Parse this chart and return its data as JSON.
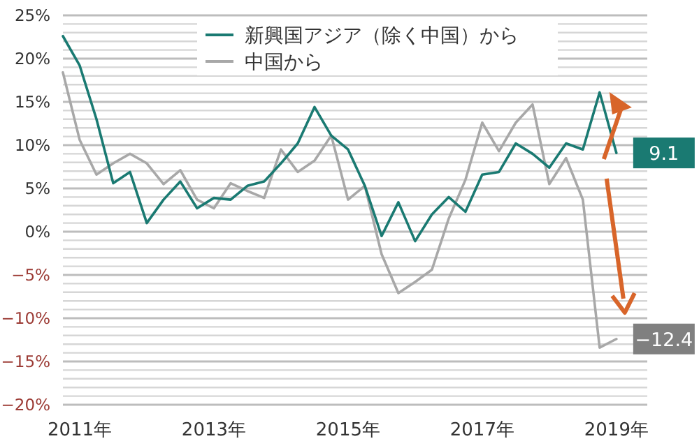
{
  "chart_data": {
    "type": "line",
    "x": [
      2010.75,
      2011,
      2011.25,
      2011.5,
      2011.75,
      2012,
      2012.25,
      2012.5,
      2012.75,
      2013,
      2013.25,
      2013.5,
      2013.75,
      2014,
      2014.25,
      2014.5,
      2014.75,
      2015,
      2015.25,
      2015.5,
      2015.75,
      2016,
      2016.25,
      2016.5,
      2016.75,
      2017,
      2017.25,
      2017.5,
      2017.75,
      2018,
      2018.25,
      2018.5,
      2018.75,
      2019
    ],
    "series": [
      {
        "name": "新興国アジア（除く中国）から",
        "color": "#1a7a72",
        "values": [
          22.6,
          19.2,
          13,
          5.6,
          6.9,
          1.0,
          3.7,
          5.8,
          2.7,
          3.9,
          3.7,
          5.3,
          5.8,
          7.9,
          10.2,
          14.4,
          11.1,
          9.5,
          5.3,
          -0.5,
          3.4,
          -1.1,
          2.0,
          4.0,
          2.3,
          6.6,
          6.9,
          10.2,
          9.0,
          7.4,
          10.2,
          9.5,
          16.1,
          9.1
        ],
        "value_labels": [
          null,
          null,
          null,
          null,
          null,
          null,
          null,
          null,
          null,
          null,
          null,
          null,
          null,
          null,
          null,
          null,
          null,
          null,
          null,
          null,
          null,
          null,
          null,
          null,
          null,
          null,
          null,
          null,
          null,
          null,
          null,
          null,
          null,
          "9.1"
        ]
      },
      {
        "name": "中国から",
        "color": "#a8a8a8",
        "values": [
          18.4,
          10.6,
          6.6,
          7.9,
          9.0,
          7.9,
          5.5,
          7.1,
          3.7,
          2.7,
          5.6,
          4.7,
          3.9,
          9.5,
          6.9,
          8.2,
          11.1,
          3.7,
          5.3,
          -2.6,
          -7.1,
          -5.8,
          -4.4,
          1.5,
          6.0,
          12.6,
          9.3,
          12.6,
          14.7,
          5.5,
          8.5,
          3.7,
          -13.4,
          -12.4
        ],
        "value_labels": [
          null,
          null,
          null,
          null,
          null,
          null,
          null,
          null,
          null,
          null,
          null,
          null,
          null,
          null,
          null,
          null,
          null,
          null,
          null,
          null,
          null,
          null,
          null,
          null,
          null,
          null,
          null,
          null,
          null,
          null,
          null,
          null,
          null,
          "−12.4"
        ]
      }
    ],
    "xlim": [
      2010.75,
      2019.46
    ],
    "xticks": [
      {
        "value": 2011,
        "label": "2011年"
      },
      {
        "value": 2013,
        "label": "2013年"
      },
      {
        "value": 2015,
        "label": "2015年"
      },
      {
        "value": 2017,
        "label": "2017年"
      },
      {
        "value": 2019,
        "label": "2019年"
      }
    ],
    "ylim": [
      -20,
      25
    ],
    "yticks": [
      {
        "value": -20,
        "label": "−20%"
      },
      {
        "value": -19,
        "label": null
      },
      {
        "value": -18,
        "label": null
      },
      {
        "value": -17,
        "label": null
      },
      {
        "value": -16,
        "label": null
      },
      {
        "value": -15,
        "label": "−15%"
      },
      {
        "value": -14,
        "label": null
      },
      {
        "value": -13,
        "label": null
      },
      {
        "value": -12,
        "label": null
      },
      {
        "value": -11,
        "label": null
      },
      {
        "value": -10,
        "label": "−10%"
      },
      {
        "value": -9,
        "label": null
      },
      {
        "value": -8,
        "label": null
      },
      {
        "value": -7,
        "label": null
      },
      {
        "value": -6,
        "label": null
      },
      {
        "value": -5,
        "label": "−5%"
      },
      {
        "value": -4,
        "label": null
      },
      {
        "value": -3,
        "label": null
      },
      {
        "value": -2,
        "label": null
      },
      {
        "value": -1,
        "label": null
      },
      {
        "value": 0,
        "label": "0%"
      },
      {
        "value": 1,
        "label": null
      },
      {
        "value": 2,
        "label": null
      },
      {
        "value": 3,
        "label": null
      },
      {
        "value": 4,
        "label": null
      },
      {
        "value": 5,
        "label": "5%"
      },
      {
        "value": 6,
        "label": null
      },
      {
        "value": 7,
        "label": null
      },
      {
        "value": 8,
        "label": null
      },
      {
        "value": 9,
        "label": null
      },
      {
        "value": 10,
        "label": "10%"
      },
      {
        "value": 11,
        "label": null
      },
      {
        "value": 12,
        "label": null
      },
      {
        "value": 13,
        "label": null
      },
      {
        "value": 14,
        "label": null
      },
      {
        "value": 15,
        "label": "15%"
      },
      {
        "value": 16,
        "label": null
      },
      {
        "value": 17,
        "label": null
      },
      {
        "value": 18,
        "label": null
      },
      {
        "value": 19,
        "label": null
      },
      {
        "value": 20,
        "label": "20%"
      },
      {
        "value": 21,
        "label": null
      },
      {
        "value": 22,
        "label": null
      },
      {
        "value": 23,
        "label": null
      },
      {
        "value": 24,
        "label": null
      },
      {
        "value": 25,
        "label": "25%"
      }
    ],
    "grid": "y",
    "legend": "top"
  }
}
